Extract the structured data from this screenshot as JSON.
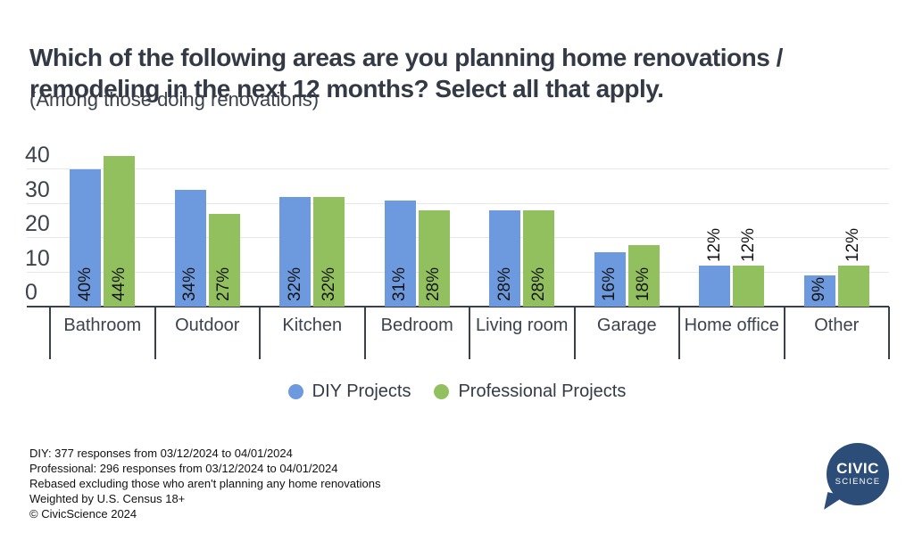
{
  "header": {
    "title": "Which of the following areas are you planning home renovations / remodeling in the next 12 months? Select all that apply.",
    "subtitle": "(Among those doing renovations)"
  },
  "chart_data": {
    "type": "bar",
    "title": "Which of the following areas are you planning home renovations / remodeling in the next 12 months? Select all that apply.",
    "subtitle": "(Among those doing renovations)",
    "categories": [
      "Bathroom",
      "Outdoor",
      "Kitchen",
      "Bedroom",
      "Living room",
      "Garage",
      "Home office",
      "Other"
    ],
    "series": [
      {
        "name": "DIY Projects",
        "color": "#6d99de",
        "values": [
          40,
          34,
          32,
          31,
          28,
          16,
          12,
          9
        ],
        "label_placement": [
          "in",
          "in",
          "in",
          "in",
          "in",
          "in",
          "out",
          "in"
        ]
      },
      {
        "name": "Professional Projects",
        "color": "#93c05f",
        "values": [
          44,
          27,
          32,
          28,
          28,
          18,
          12,
          12
        ],
        "label_placement": [
          "in",
          "in",
          "in",
          "in",
          "in",
          "in",
          "out",
          "out"
        ]
      }
    ],
    "value_suffix": "%",
    "y_ticks": [
      0,
      10,
      20,
      30,
      40
    ],
    "ylim": [
      0,
      45
    ],
    "grid": true,
    "legend_position": "bottom",
    "bar_label_color": "#141414",
    "grid_color": "#e7e7e7",
    "axis_color": "#3a4049"
  },
  "footer": {
    "lines": [
      "DIY: 377 responses from 03/12/2024 to 04/01/2024",
      "Professional: 296 responses from 03/12/2024 to 04/01/2024",
      "Rebased excluding those who aren't planning any home renovations",
      "Weighted by U.S. Census 18+",
      "© CivicScience 2024"
    ]
  },
  "logo": {
    "line1": "CIVIC",
    "line2": "SCIENCE",
    "color": "#2b4d78"
  }
}
